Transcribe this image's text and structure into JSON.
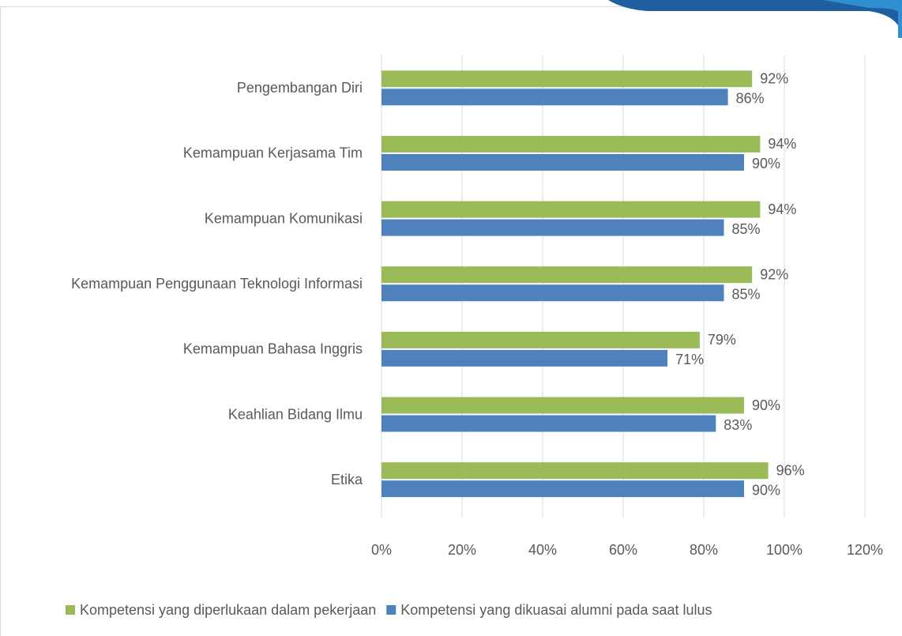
{
  "chart_data": {
    "type": "bar",
    "orientation": "horizontal",
    "categories": [
      "Pengembangan Diri",
      "Kemampuan Kerjasama Tim",
      "Kemampuan Komunikasi",
      "Kemampuan Penggunaan Teknologi Informasi",
      "Kemampuan Bahasa Inggris",
      "Keahlian Bidang Ilmu",
      "Etika"
    ],
    "series": [
      {
        "name": "Kompetensi yang diperlukaan dalam pekerjaan",
        "color": "#9bbb59",
        "values": [
          92,
          94,
          94,
          92,
          79,
          90,
          96
        ],
        "value_labels": [
          "92%",
          "94%",
          "94%",
          "92%",
          "79%",
          "90%",
          "96%"
        ]
      },
      {
        "name": "Kompetensi yang dikuasai alumni pada saat lulus",
        "color": "#4f81bd",
        "values": [
          86,
          90,
          85,
          85,
          71,
          83,
          90
        ],
        "value_labels": [
          "86%",
          "90%",
          "85%",
          "85%",
          "71%",
          "83%",
          "90%"
        ]
      }
    ],
    "xlim": [
      0,
      120
    ],
    "xticks": [
      {
        "value": 0,
        "label": "0%"
      },
      {
        "value": 20,
        "label": "20%"
      },
      {
        "value": 40,
        "label": "40%"
      },
      {
        "value": 60,
        "label": "60%"
      },
      {
        "value": 80,
        "label": "80%"
      },
      {
        "value": 100,
        "label": "100%"
      },
      {
        "value": 120,
        "label": "120%"
      }
    ],
    "grid": true,
    "legend": "bottom"
  }
}
